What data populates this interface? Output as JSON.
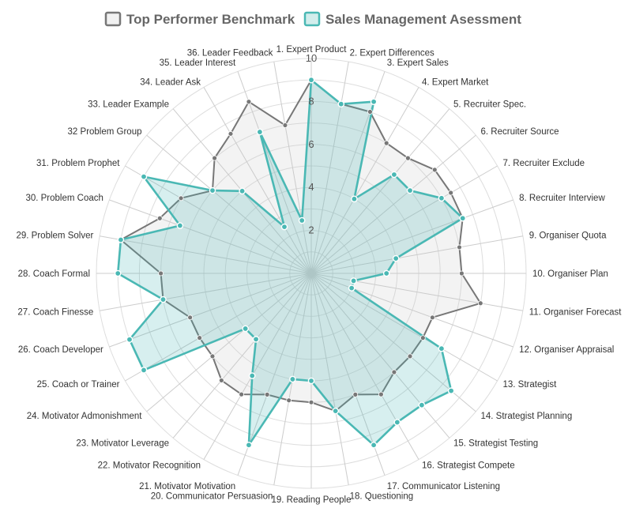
{
  "chart_data": {
    "type": "radar",
    "r_range": [
      0,
      10
    ],
    "ticks": [
      "2",
      "4",
      "6",
      "8",
      "10"
    ],
    "grid": true,
    "legend_position": "top-center",
    "categories": [
      "1. Expert Product",
      "2. Expert Differences",
      "3. Expert Sales",
      "4. Expert Market",
      "5. Recruiter Spec.",
      "6. Recruiter Source",
      "7. Recruiter Exclude",
      "8. Recruiter Interview",
      "9. Organiser Quota",
      "10. Organiser Plan",
      "11. Organiser Forecast",
      "12. Organiser Appraisal",
      "13. Strategist",
      "14. Strategist Planning",
      "15. Strategist Testing",
      "16. Strategist Compete",
      "17. Communicator Listening",
      "18. Questioning",
      "19. Reading People",
      "20. Communicator Persuasion",
      "21. Motivator Motivation",
      "22. Motivator Recognition",
      "23. Motivator Leverage",
      "24. Motivator Admonishment",
      "25. Coach or Trainer",
      "26. Coach Developer",
      "27. Coach Finesse",
      "28. Coach Formal",
      "29. Problem Solver",
      "30. Problem Coach",
      "31. Problem Prophet",
      "32 Problem Group",
      "33. Leader Example",
      "34. Leader Ask",
      "35. Leader Interest",
      "36. Leader Feedback"
    ],
    "series": [
      {
        "name": "Top Performer Benchmark",
        "color": "#777777",
        "fill": "rgba(200,200,200,0.22)",
        "values": [
          9,
          8,
          8,
          7,
          7,
          7.5,
          7.5,
          7.5,
          7,
          7,
          8,
          6,
          6,
          6,
          6,
          6.5,
          6,
          6.5,
          6,
          6,
          6,
          6.5,
          6.5,
          6,
          6,
          6,
          7,
          7,
          9,
          7.5,
          7,
          6,
          7,
          7.5,
          8.5,
          7
        ]
      },
      {
        "name": "Sales Management Asessment",
        "color": "#4ab8b4",
        "fill": "rgba(74,184,180,0.22)",
        "values": [
          9,
          8,
          8.5,
          4,
          6,
          6,
          7,
          7.5,
          4,
          3.5,
          2,
          2,
          7,
          8.5,
          8,
          8,
          8.5,
          6.5,
          5,
          5,
          8.5,
          5.5,
          4,
          4,
          9,
          9,
          7,
          9,
          9,
          6.5,
          9,
          6,
          5,
          2.5,
          7,
          2.5
        ]
      }
    ]
  }
}
